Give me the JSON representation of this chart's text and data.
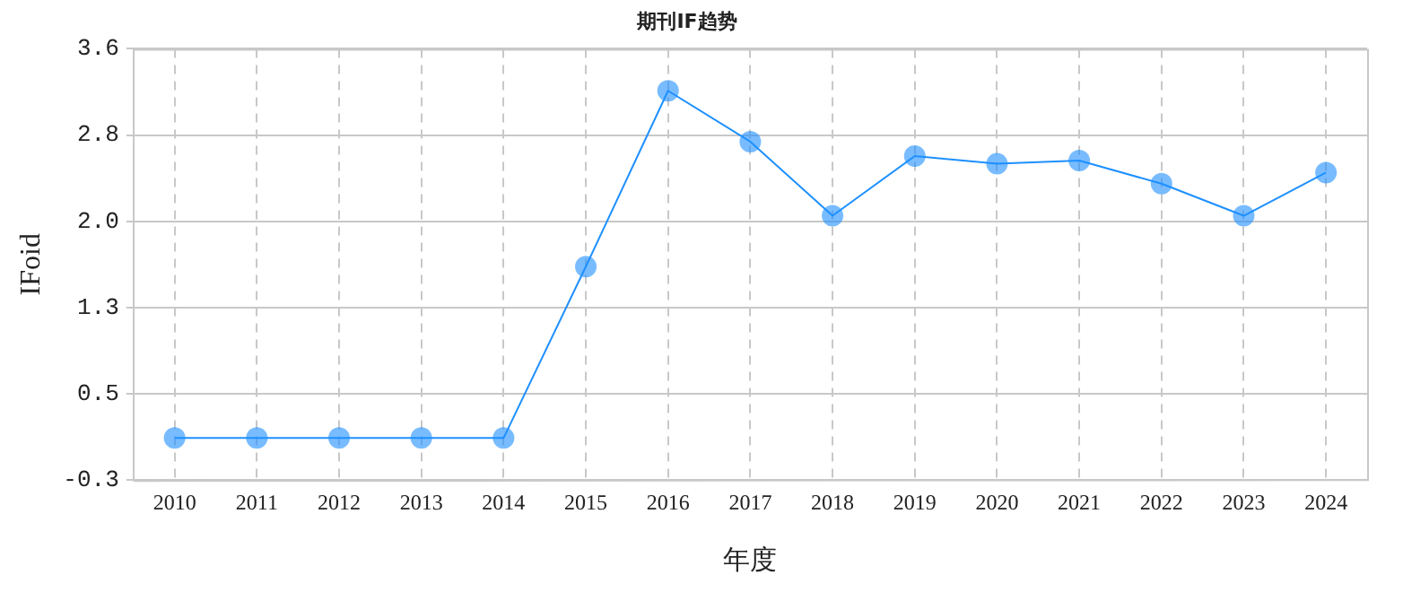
{
  "chart_data": {
    "type": "line",
    "title": "期刊IF趋势",
    "xlabel": "年度",
    "ylabel": "IFoid",
    "categories": [
      "2010",
      "2011",
      "2012",
      "2013",
      "2014",
      "2015",
      "2016",
      "2017",
      "2018",
      "2019",
      "2020",
      "2021",
      "2022",
      "2023",
      "2024"
    ],
    "series": [
      {
        "color": "#1e90ff",
        "values": [
          0.08,
          0.08,
          0.08,
          0.08,
          0.08,
          1.63,
          3.22,
          2.76,
          2.09,
          2.63,
          2.56,
          2.59,
          2.38,
          2.09,
          2.48
        ]
      }
    ],
    "ylim": [
      -0.3,
      3.6
    ],
    "yticks": [
      -0.3,
      {
        "value": 0.48,
        "label": "0.5"
      },
      {
        "value": 1.26,
        "label": "1.3"
      },
      {
        "value": 2.04,
        "label": "2.0"
      },
      {
        "value": 2.82,
        "label": "2.8"
      },
      3.6
    ],
    "grid": true,
    "legend": false,
    "marker": "circle",
    "line_style": "solid"
  }
}
